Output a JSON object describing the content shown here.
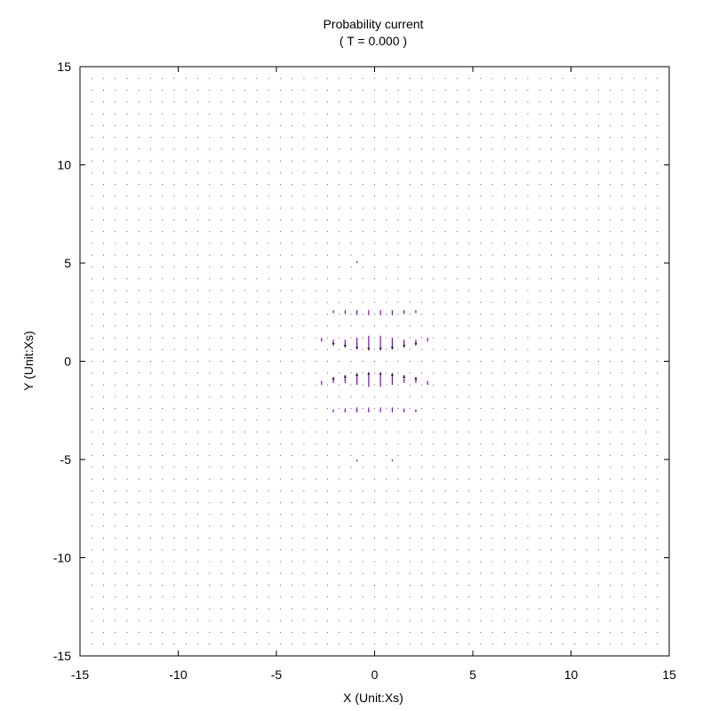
{
  "chart_data": {
    "type": "vector-field",
    "title": "Probability current",
    "subtitle": "( T = 0.000 )",
    "xlabel": "X (Unit:Xs)",
    "ylabel": "Y (Unit:Xs)",
    "xlim": [
      -15,
      15
    ],
    "ylim": [
      -15,
      15
    ],
    "xticks": [
      -15,
      -10,
      -5,
      0,
      5,
      10,
      15
    ],
    "yticks": [
      -15,
      -10,
      -5,
      0,
      5,
      10,
      15
    ],
    "xtick_labels": [
      "-15",
      "-10",
      "-5",
      "0",
      "5",
      "10",
      "15"
    ],
    "ytick_labels": [
      "-15",
      "-10",
      "-5",
      "0",
      "5",
      "10",
      "15"
    ],
    "grid": false,
    "grid_spacing": 0.6,
    "vector_color": "#8800cc",
    "background_dot_color": "#555555",
    "vectors": [
      {
        "x": -0.9,
        "y": 1.2,
        "dx": 0,
        "dy": -0.6
      },
      {
        "x": -0.3,
        "y": 1.3,
        "dx": 0,
        "dy": -0.75
      },
      {
        "x": 0.3,
        "y": 1.3,
        "dx": 0,
        "dy": -0.75
      },
      {
        "x": 0.9,
        "y": 1.2,
        "dx": 0,
        "dy": -0.6
      },
      {
        "x": -0.9,
        "y": -1.2,
        "dx": 0,
        "dy": 0.6
      },
      {
        "x": -0.3,
        "y": -1.3,
        "dx": 0,
        "dy": 0.75
      },
      {
        "x": 0.3,
        "y": -1.3,
        "dx": 0,
        "dy": 0.75
      },
      {
        "x": 0.9,
        "y": -1.2,
        "dx": 0,
        "dy": 0.6
      },
      {
        "x": -1.5,
        "y": 1.1,
        "dx": 0,
        "dy": -0.4
      },
      {
        "x": 1.5,
        "y": 1.1,
        "dx": 0,
        "dy": -0.4
      },
      {
        "x": -1.5,
        "y": -1.1,
        "dx": 0,
        "dy": 0.4
      },
      {
        "x": 1.5,
        "y": -1.1,
        "dx": 0,
        "dy": 0.4
      },
      {
        "x": -2.1,
        "y": 1.1,
        "dx": 0,
        "dy": -0.3
      },
      {
        "x": 2.1,
        "y": 1.1,
        "dx": 0,
        "dy": -0.3
      },
      {
        "x": -2.1,
        "y": -1.1,
        "dx": 0,
        "dy": 0.3
      },
      {
        "x": 2.1,
        "y": -1.1,
        "dx": 0,
        "dy": 0.3
      },
      {
        "x": -2.7,
        "y": 1.2,
        "dx": 0,
        "dy": -0.2
      },
      {
        "x": 2.7,
        "y": 1.2,
        "dx": 0,
        "dy": -0.2
      },
      {
        "x": -2.7,
        "y": -1.2,
        "dx": 0,
        "dy": 0.2
      },
      {
        "x": 2.7,
        "y": -1.2,
        "dx": 0,
        "dy": 0.2
      },
      {
        "x": -0.9,
        "y": 2.6,
        "dx": 0,
        "dy": -0.25
      },
      {
        "x": -0.3,
        "y": 2.6,
        "dx": 0,
        "dy": -0.25
      },
      {
        "x": 0.3,
        "y": 2.6,
        "dx": 0,
        "dy": -0.25
      },
      {
        "x": 0.9,
        "y": 2.6,
        "dx": 0,
        "dy": -0.25
      },
      {
        "x": -1.5,
        "y": 2.6,
        "dx": 0,
        "dy": -0.2
      },
      {
        "x": 1.5,
        "y": 2.6,
        "dx": 0,
        "dy": -0.2
      },
      {
        "x": -2.1,
        "y": 2.6,
        "dx": 0,
        "dy": -0.15
      },
      {
        "x": 2.1,
        "y": 2.6,
        "dx": 0,
        "dy": -0.15
      },
      {
        "x": -0.9,
        "y": -2.6,
        "dx": 0,
        "dy": 0.25
      },
      {
        "x": -0.3,
        "y": -2.6,
        "dx": 0,
        "dy": 0.25
      },
      {
        "x": 0.3,
        "y": -2.6,
        "dx": 0,
        "dy": 0.25
      },
      {
        "x": 0.9,
        "y": -2.6,
        "dx": 0,
        "dy": 0.25
      },
      {
        "x": -1.5,
        "y": -2.6,
        "dx": 0,
        "dy": 0.2
      },
      {
        "x": 1.5,
        "y": -2.6,
        "dx": 0,
        "dy": 0.2
      },
      {
        "x": -2.1,
        "y": -2.6,
        "dx": 0,
        "dy": 0.15
      },
      {
        "x": 2.1,
        "y": -2.6,
        "dx": 0,
        "dy": 0.15
      },
      {
        "x": -0.9,
        "y": 5.1,
        "dx": 0,
        "dy": -0.1
      },
      {
        "x": 0.9,
        "y": -5.1,
        "dx": 0,
        "dy": 0.1
      },
      {
        "x": -0.9,
        "y": -5.1,
        "dx": 0,
        "dy": 0.1
      }
    ]
  }
}
